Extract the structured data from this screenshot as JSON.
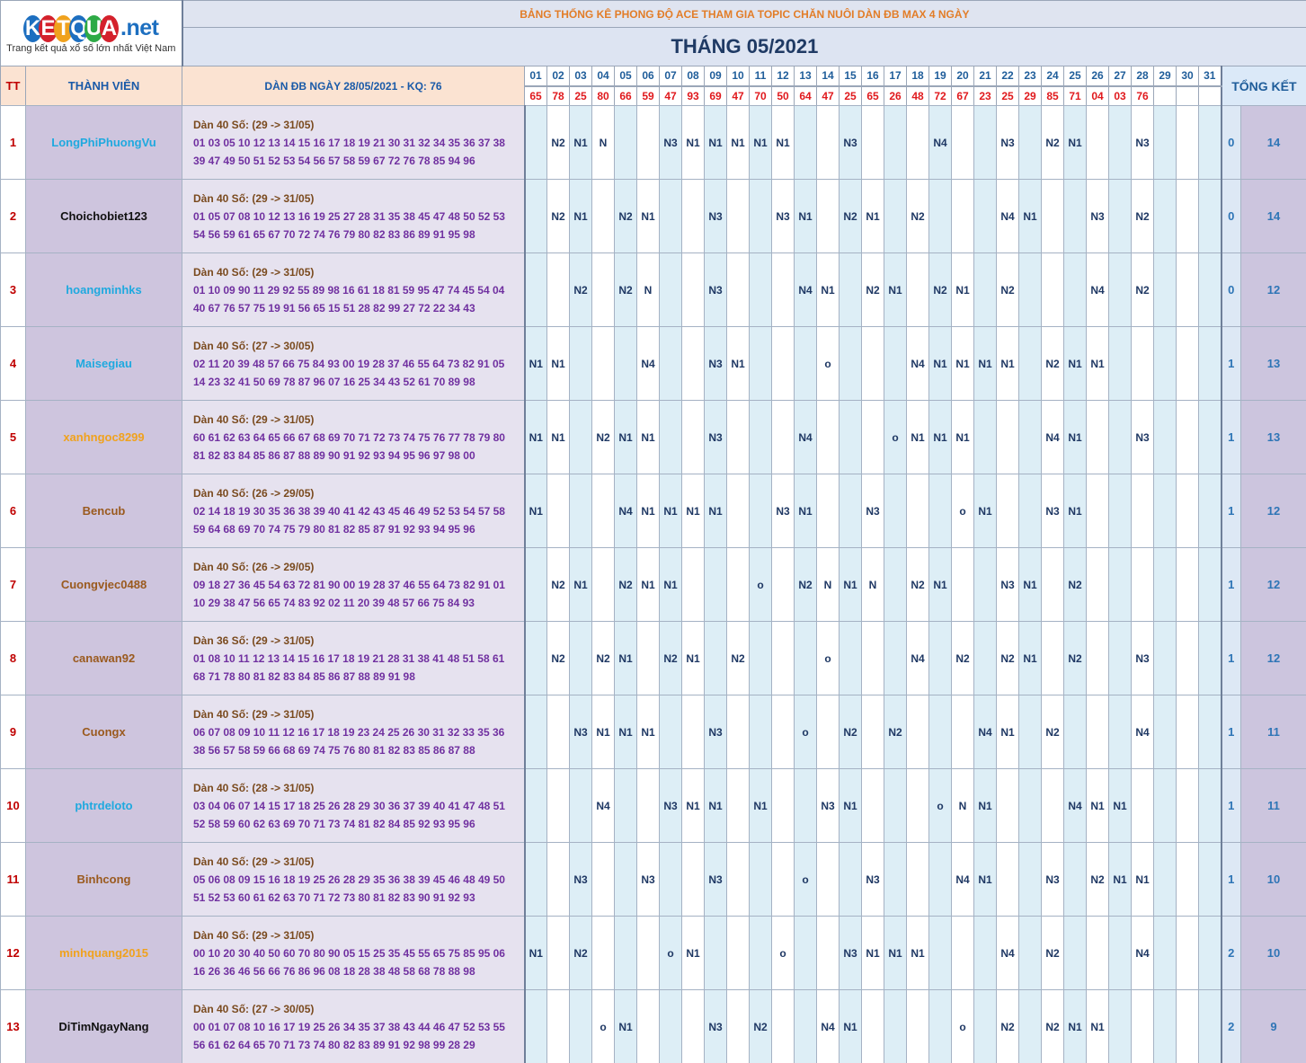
{
  "logo": {
    "letters": [
      "K",
      "E",
      "T",
      "Q",
      "U",
      "A"
    ],
    "letter_colors": [
      "#1d6fc0",
      "#d4212c",
      "#f0a21d",
      "#1d6fc0",
      "#2eaa46",
      "#d4212c"
    ],
    "suffix": ".net",
    "tagline": "Trang kết quả xổ số lớn nhất Việt Nam"
  },
  "title": "BẢNG THỐNG KÊ PHONG ĐỘ ACE THAM GIA TOPIC CHĂN NUÔI DÀN ĐB MAX 4 NGÀY",
  "month_title": "THÁNG 05/2021",
  "headers": {
    "tt": "TT",
    "member": "THÀNH VIÊN",
    "dan": "DÀN ĐB NGÀY 28/05/2021 - KQ: 76",
    "summary": "TỔNG KẾT"
  },
  "days": [
    "01",
    "02",
    "03",
    "04",
    "05",
    "06",
    "07",
    "08",
    "09",
    "10",
    "11",
    "12",
    "13",
    "14",
    "15",
    "16",
    "17",
    "18",
    "19",
    "20",
    "21",
    "22",
    "23",
    "24",
    "25",
    "26",
    "27",
    "28",
    "29",
    "30",
    "31"
  ],
  "results": [
    "65",
    "78",
    "25",
    "80",
    "66",
    "59",
    "47",
    "93",
    "69",
    "47",
    "70",
    "50",
    "64",
    "47",
    "25",
    "65",
    "26",
    "48",
    "72",
    "67",
    "23",
    "25",
    "29",
    "85",
    "71",
    "04",
    "03",
    "76",
    "",
    "",
    ""
  ],
  "rows": [
    {
      "tt": "1",
      "name": "LongPhiPhuongVu",
      "color": "#1fa9df",
      "cap": "Dàn 40 Số: (29 -> 31/05)",
      "line1": "01 03 05 10 12 13 14 15 16 17 18 19 21 30 31 32 34 35 36 37 38",
      "line2": "39 47 49 50 51 52 53 54 56 57 58 59 67 72 76 78 85 94 96",
      "cells": [
        "",
        "N2",
        "N1",
        "N",
        "",
        "",
        "N3",
        "N1",
        "N1",
        "N1",
        "N1",
        "N1",
        "",
        "",
        "N3",
        "",
        "",
        "",
        "N4",
        "",
        "",
        "N3",
        "",
        "N2",
        "N1",
        "",
        "",
        "N3",
        "",
        "",
        ""
      ],
      "s1": "0",
      "s2": "14"
    },
    {
      "tt": "2",
      "name": "Choichobiet123",
      "color": "#111111",
      "cap": "Dàn 40 Số: (29 -> 31/05)",
      "line1": "01 05 07 08 10 12 13 16 19 25 27 28 31 35 38 45 47 48 50 52 53",
      "line2": "54 56 59 61 65 67 70 72 74 76 79 80 82 83 86 89 91 95 98",
      "cells": [
        "",
        "N2",
        "N1",
        "",
        "N2",
        "N1",
        "",
        "",
        "N3",
        "",
        "",
        "N3",
        "N1",
        "",
        "N2",
        "N1",
        "",
        "N2",
        "",
        "",
        "",
        "N4",
        "N1",
        "",
        "",
        "N3",
        "",
        "N2",
        "",
        "",
        ""
      ],
      "s1": "0",
      "s2": "14"
    },
    {
      "tt": "3",
      "name": "hoangminhks",
      "color": "#1fa9df",
      "cap": "Dàn 40 Số: (29 -> 31/05)",
      "line1": "01 10 09 90 11 29 92 55 89 98 16 61 18 81 59 95 47 74 45 54 04",
      "line2": "40 67 76 57 75 19 91 56 65 15 51 28 82 99 27 72 22 34 43",
      "cells": [
        "",
        "",
        "N2",
        "",
        "N2",
        "N",
        "",
        "",
        "N3",
        "",
        "",
        "",
        "N4",
        "N1",
        "",
        "N2",
        "N1",
        "",
        "N2",
        "N1",
        "",
        "N2",
        "",
        "",
        "",
        "N4",
        "",
        "N2",
        "",
        "",
        ""
      ],
      "s1": "0",
      "s2": "12"
    },
    {
      "tt": "4",
      "name": "Maisegiau",
      "color": "#1fa9df",
      "cap": "Dàn 40 Số: (27 -> 30/05)",
      "line1": "02 11 20 39 48 57 66 75 84 93 00 19 28 37 46 55 64 73 82 91 05",
      "line2": "14 23 32 41 50 69 78 87 96 07 16 25 34 43 52 61 70 89 98",
      "cells": [
        "N1",
        "N1",
        "",
        "",
        "",
        "N4",
        "",
        "",
        "N3",
        "N1",
        "",
        "",
        "",
        "o",
        "",
        "",
        "",
        "N4",
        "N1",
        "N1",
        "N1",
        "N1",
        "",
        "N2",
        "N1",
        "N1",
        "",
        "",
        "",
        "",
        ""
      ],
      "s1": "1",
      "s2": "13"
    },
    {
      "tt": "5",
      "name": "xanhngoc8299",
      "color": "#f0a21d",
      "cap": "Dàn 40 Số: (29 -> 31/05)",
      "line1": "60 61 62 63 64 65 66 67 68 69 70 71 72 73 74 75 76 77 78 79 80",
      "line2": "81 82 83 84 85 86 87 88 89 90 91 92 93 94 95 96 97 98 00",
      "cells": [
        "N1",
        "N1",
        "",
        "N2",
        "N1",
        "N1",
        "",
        "",
        "N3",
        "",
        "",
        "",
        "N4",
        "",
        "",
        "",
        "o",
        "N1",
        "N1",
        "N1",
        "",
        "",
        "",
        "N4",
        "N1",
        "",
        "",
        "N3",
        "",
        "",
        ""
      ],
      "s1": "1",
      "s2": "13"
    },
    {
      "tt": "6",
      "name": "Bencub",
      "color": "#9a5a1e",
      "cap": "Dàn 40 Số: (26 -> 29/05)",
      "line1": "02 14 18 19 30 35 36 38 39 40 41 42 43 45 46 49 52 53 54 57 58",
      "line2": "59 64 68 69 70 74 75 79 80 81 82 85 87 91 92 93 94 95 96",
      "cells": [
        "N1",
        "",
        "",
        "",
        "N4",
        "N1",
        "N1",
        "N1",
        "N1",
        "",
        "",
        "N3",
        "N1",
        "",
        "",
        "N3",
        "",
        "",
        "",
        "o",
        "N1",
        "",
        "",
        "N3",
        "N1",
        "",
        "",
        "",
        "",
        "",
        ""
      ],
      "s1": "1",
      "s2": "12"
    },
    {
      "tt": "7",
      "name": "Cuongvjec0488",
      "color": "#9a5a1e",
      "cap": "Dàn 40 Số: (26 -> 29/05)",
      "line1": "09 18 27 36 45 54 63 72 81 90 00 19 28 37 46 55 64 73 82 91 01",
      "line2": "10 29 38 47 56 65 74 83 92 02 11 20 39 48 57 66 75 84 93",
      "cells": [
        "",
        "N2",
        "N1",
        "",
        "N2",
        "N1",
        "N1",
        "",
        "",
        "",
        "o",
        "",
        "N2",
        "N",
        "N1",
        "N",
        "",
        "N2",
        "N1",
        "",
        "",
        "N3",
        "N1",
        "",
        "N2",
        "",
        "",
        "",
        "",
        "",
        ""
      ],
      "s1": "1",
      "s2": "12"
    },
    {
      "tt": "8",
      "name": "canawan92",
      "color": "#9a5a1e",
      "cap": "Dàn 36 Số: (29 -> 31/05)",
      "line1": "01 08 10 11 12 13 14 15 16 17 18 19 21 28 31 38 41 48 51 58 61",
      "line2": "68 71 78 80 81 82 83 84 85 86 87 88 89 91 98",
      "cells": [
        "",
        "N2",
        "",
        "N2",
        "N1",
        "",
        "N2",
        "N1",
        "",
        "N2",
        "",
        "",
        "",
        "o",
        "",
        "",
        "",
        "N4",
        "",
        "N2",
        "",
        "N2",
        "N1",
        "",
        "N2",
        "",
        "",
        "N3",
        "",
        "",
        ""
      ],
      "s1": "1",
      "s2": "12"
    },
    {
      "tt": "9",
      "name": "Cuongx",
      "color": "#9a5a1e",
      "cap": "Dàn 40 Số: (29 -> 31/05)",
      "line1": "06 07 08 09 10 11 12 16 17 18 19 23 24 25 26 30 31 32 33 35 36",
      "line2": "38 56 57 58 59 66 68 69 74 75 76 80 81 82 83 85 86 87 88",
      "cells": [
        "",
        "",
        "N3",
        "N1",
        "N1",
        "N1",
        "",
        "",
        "N3",
        "",
        "",
        "",
        "o",
        "",
        "N2",
        "",
        "N2",
        "",
        "",
        "",
        "N4",
        "N1",
        "",
        "N2",
        "",
        "",
        "",
        "N4",
        "",
        "",
        ""
      ],
      "s1": "1",
      "s2": "11"
    },
    {
      "tt": "10",
      "name": "phtrdeloto",
      "color": "#1fa9df",
      "cap": "Dàn 40 Số: (28 -> 31/05)",
      "line1": "03 04 06 07 14 15 17 18 25 26 28 29 30 36 37 39 40 41 47 48 51",
      "line2": "52 58 59 60 62 63 69 70 71 73 74 81 82 84 85 92 93 95 96",
      "cells": [
        "",
        "",
        "",
        "N4",
        "",
        "",
        "N3",
        "N1",
        "N1",
        "",
        "N1",
        "",
        "",
        "N3",
        "N1",
        "",
        "",
        "",
        "o",
        "N",
        "N1",
        "",
        "",
        "",
        "N4",
        "N1",
        "N1",
        "",
        "",
        "",
        ""
      ],
      "s1": "1",
      "s2": "11"
    },
    {
      "tt": "11",
      "name": "Binhcong",
      "color": "#9a5a1e",
      "cap": "Dàn 40 Số: (29 -> 31/05)",
      "line1": "05 06 08 09 15 16 18 19 25 26 28 29 35 36 38 39 45 46 48 49 50",
      "line2": "51 52 53 60 61 62 63 70 71 72 73 80 81 82 83 90 91 92 93",
      "cells": [
        "",
        "",
        "N3",
        "",
        "",
        "N3",
        "",
        "",
        "N3",
        "",
        "",
        "",
        "o",
        "",
        "",
        "N3",
        "",
        "",
        "",
        "N4",
        "N1",
        "",
        "",
        "N3",
        "",
        "N2",
        "N1",
        "N1",
        "",
        "",
        ""
      ],
      "s1": "1",
      "s2": "10"
    },
    {
      "tt": "12",
      "name": "minhquang2015",
      "color": "#f0a21d",
      "cap": "Dàn 40 Số: (29 -> 31/05)",
      "line1": "00 10 20 30 40 50 60 70 80 90 05 15 25 35 45 55 65 75 85 95 06",
      "line2": "16 26 36 46 56 66 76 86 96 08 18 28 38 48 58 68 78 88 98",
      "cells": [
        "N1",
        "",
        "N2",
        "",
        "",
        "",
        "o",
        "N1",
        "",
        "",
        "",
        "o",
        "",
        "",
        "N3",
        "N1",
        "N1",
        "N1",
        "",
        "",
        "",
        "N4",
        "",
        "N2",
        "",
        "",
        "",
        "N4",
        "",
        "",
        ""
      ],
      "s1": "2",
      "s2": "10"
    },
    {
      "tt": "13",
      "name": "DiTimNgayNang",
      "color": "#111111",
      "cap": "Dàn 40 Số: (27 -> 30/05)",
      "line1": "00 01 07 08 10 16 17 19 25 26 34 35 37 38 43 44 46 47 52 53 55",
      "line2": "56 61 62 64 65 70 71 73 74 80 82 83 89 91 92 98 99 28 29",
      "cells": [
        "",
        "",
        "",
        "o",
        "N1",
        "",
        "",
        "",
        "N3",
        "",
        "N2",
        "",
        "",
        "N4",
        "N1",
        "",
        "",
        "",
        "",
        "o",
        "",
        "N2",
        "",
        "N2",
        "N1",
        "N1",
        "",
        "",
        "",
        "",
        ""
      ],
      "s1": "2",
      "s2": "9"
    }
  ]
}
